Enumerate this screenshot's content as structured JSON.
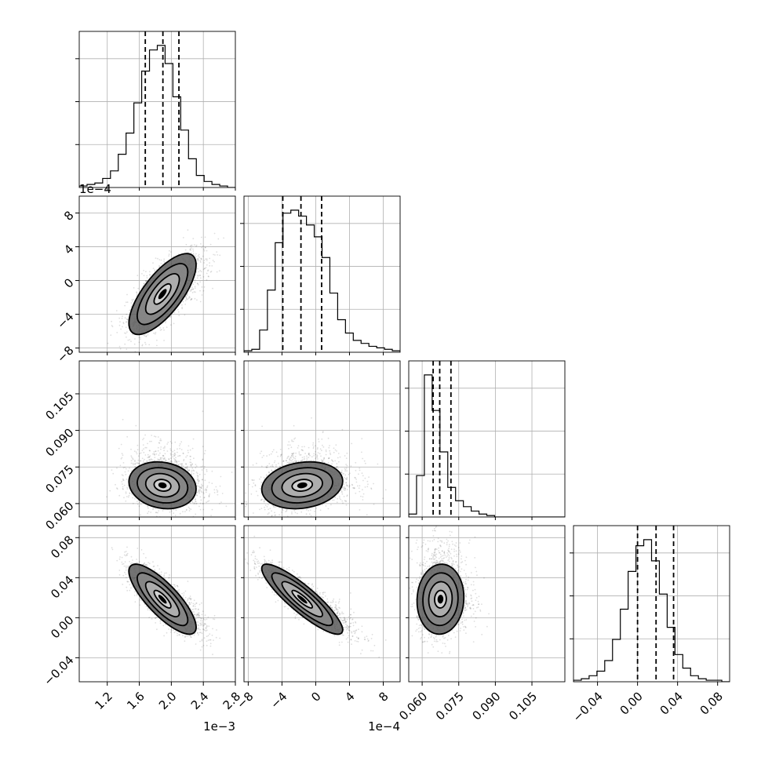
{
  "chart_data": {
    "type": "corner",
    "description_of_layout": "4x4 lower-triangular corner plot of 4 parameters",
    "params": [
      {
        "range": [
          0.00085,
          0.0028
        ],
        "ticks": [
          0.0012,
          0.0016,
          0.002,
          0.0024,
          0.0028
        ],
        "tick_labels": [
          "1.2",
          "1.6",
          "2.0",
          "2.4",
          "2.8"
        ],
        "offset": "1e−3",
        "hist_counts": [
          1,
          2,
          3,
          6,
          11,
          22,
          36,
          56,
          77,
          91,
          94,
          82,
          60,
          38,
          19,
          8,
          4,
          2,
          1,
          0
        ],
        "quantiles": [
          0.001675,
          0.001895,
          0.002095
        ],
        "mean": 0.00189,
        "sd": 0.00021
      },
      {
        "range": [
          -0.00085,
          0.001
        ],
        "ticks": [
          -0.0008,
          -0.0004,
          0.0,
          0.0004,
          0.0008
        ],
        "tick_labels": [
          "−8",
          "−4",
          "0",
          "4",
          "8"
        ],
        "offset": "1e−4",
        "hist_counts": [
          1,
          2,
          15,
          42,
          74,
          94,
          96,
          92,
          86,
          78,
          64,
          40,
          22,
          13,
          8,
          6,
          4,
          3,
          2,
          1
        ],
        "quantiles": [
          -0.00039,
          -0.000175,
          7e-05
        ],
        "mean": -0.00016,
        "sd": 0.00024
      },
      {
        "range": [
          0.0545,
          0.1185
        ],
        "ticks": [
          0.06,
          0.075,
          0.09,
          0.105
        ],
        "tick_labels": [
          "0.060",
          "0.075",
          "0.090",
          "0.105"
        ],
        "offset": "",
        "hist_counts": [
          2,
          28,
          96,
          72,
          44,
          20,
          11,
          7,
          4,
          2,
          1,
          0,
          0,
          0,
          0,
          0,
          0,
          0,
          0,
          0
        ],
        "quantiles": [
          0.0645,
          0.0672,
          0.0718
        ],
        "mean": 0.0675,
        "sd": 0.0048
      },
      {
        "range": [
          -0.064,
          0.092
        ],
        "ticks": [
          -0.04,
          0.0,
          0.04,
          0.08
        ],
        "tick_labels": [
          "−0.04",
          "0.00",
          "0.04",
          "0.08"
        ],
        "offset": "",
        "hist_counts": [
          1,
          2,
          4,
          7,
          14,
          28,
          48,
          73,
          90,
          94,
          80,
          58,
          36,
          18,
          9,
          4,
          2,
          1,
          1,
          0
        ],
        "quantiles": [
          0.0,
          0.0185,
          0.036
        ],
        "mean": 0.0185,
        "sd": 0.0175
      }
    ],
    "correlations": {
      "1-0": 0.72,
      "2-0": -0.15,
      "2-1": 0.18,
      "3-0": -0.8,
      "3-1": -0.88,
      "3-2": 0.05
    },
    "contour_levels": [
      0.118,
      0.393,
      0.675,
      0.864
    ],
    "grid": true,
    "legend": "none"
  }
}
